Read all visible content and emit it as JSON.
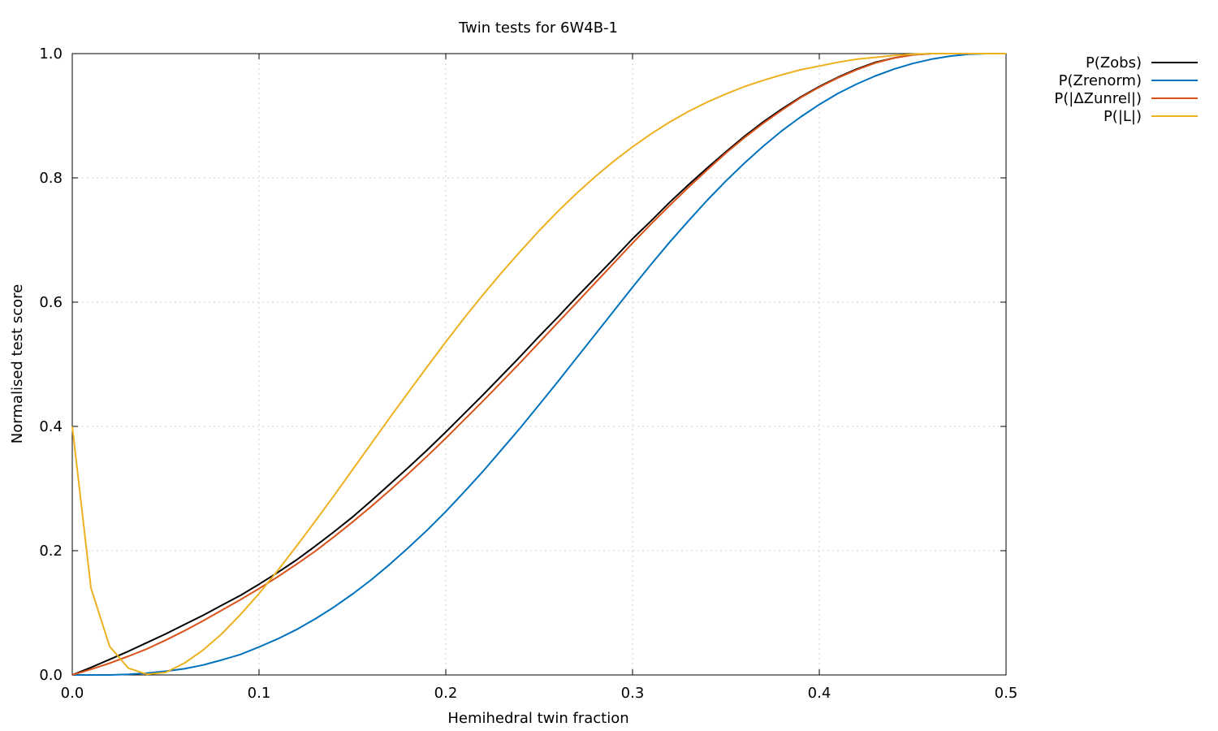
{
  "chart_data": {
    "type": "line",
    "title": "Twin tests for 6W4B-1",
    "xlabel": "Hemihedral twin fraction",
    "ylabel": "Normalised test score",
    "xlim": [
      0,
      0.5
    ],
    "ylim": [
      0,
      1.0
    ],
    "xticks": [
      "0.0",
      "0.1",
      "0.2",
      "0.3",
      "0.4",
      "0.5"
    ],
    "yticks": [
      "0.0",
      "0.2",
      "0.4",
      "0.6",
      "0.8",
      "1.0"
    ],
    "grid": true,
    "legend_position": "outside-top-right",
    "x": [
      0.0,
      0.01,
      0.02,
      0.03,
      0.04,
      0.05,
      0.06,
      0.07,
      0.08,
      0.09,
      0.1,
      0.11,
      0.12,
      0.13,
      0.14,
      0.15,
      0.16,
      0.17,
      0.18,
      0.19,
      0.2,
      0.21,
      0.22,
      0.23,
      0.24,
      0.25,
      0.26,
      0.27,
      0.28,
      0.29,
      0.3,
      0.31,
      0.32,
      0.33,
      0.34,
      0.35,
      0.36,
      0.37,
      0.38,
      0.39,
      0.4,
      0.41,
      0.42,
      0.43,
      0.44,
      0.45,
      0.46,
      0.47,
      0.48,
      0.49,
      0.5
    ],
    "series": [
      {
        "name": "P(Zobs)",
        "color": "#000000",
        "values": [
          0.0,
          0.012,
          0.025,
          0.038,
          0.052,
          0.066,
          0.081,
          0.096,
          0.112,
          0.128,
          0.146,
          0.165,
          0.185,
          0.207,
          0.23,
          0.254,
          0.28,
          0.307,
          0.334,
          0.362,
          0.391,
          0.421,
          0.451,
          0.482,
          0.513,
          0.545,
          0.576,
          0.608,
          0.639,
          0.67,
          0.702,
          0.731,
          0.761,
          0.789,
          0.816,
          0.842,
          0.867,
          0.89,
          0.911,
          0.93,
          0.947,
          0.962,
          0.975,
          0.986,
          0.993,
          0.998,
          1.0,
          1.0,
          1.0,
          1.0,
          1.0
        ]
      },
      {
        "name": "P(Zrenorm)",
        "color": "#0072bd",
        "values": [
          0.0,
          0.0,
          0.0,
          0.001,
          0.003,
          0.006,
          0.01,
          0.016,
          0.024,
          0.033,
          0.045,
          0.058,
          0.073,
          0.09,
          0.109,
          0.13,
          0.153,
          0.178,
          0.205,
          0.233,
          0.263,
          0.295,
          0.328,
          0.363,
          0.398,
          0.435,
          0.472,
          0.51,
          0.548,
          0.586,
          0.624,
          0.661,
          0.697,
          0.731,
          0.764,
          0.795,
          0.824,
          0.851,
          0.876,
          0.898,
          0.918,
          0.936,
          0.951,
          0.964,
          0.975,
          0.984,
          0.991,
          0.996,
          0.999,
          1.0,
          1.0
        ]
      },
      {
        "name": "P(|ΔZunrel|)",
        "color": "#d95319",
        "values": [
          0.0,
          0.009,
          0.019,
          0.03,
          0.042,
          0.056,
          0.071,
          0.087,
          0.104,
          0.121,
          0.139,
          0.158,
          0.178,
          0.199,
          0.222,
          0.246,
          0.271,
          0.297,
          0.324,
          0.352,
          0.381,
          0.411,
          0.441,
          0.472,
          0.503,
          0.535,
          0.567,
          0.599,
          0.631,
          0.663,
          0.695,
          0.726,
          0.756,
          0.785,
          0.813,
          0.84,
          0.865,
          0.888,
          0.909,
          0.929,
          0.946,
          0.961,
          0.974,
          0.985,
          0.993,
          0.998,
          1.0,
          1.0,
          1.0,
          1.0,
          1.0
        ]
      },
      {
        "name": "P(|L|)",
        "color": "#edb120",
        "values": [
          0.4,
          0.14,
          0.046,
          0.011,
          0.001,
          0.004,
          0.019,
          0.04,
          0.066,
          0.097,
          0.131,
          0.168,
          0.207,
          0.247,
          0.288,
          0.33,
          0.372,
          0.414,
          0.455,
          0.496,
          0.536,
          0.575,
          0.612,
          0.648,
          0.682,
          0.715,
          0.746,
          0.775,
          0.802,
          0.827,
          0.85,
          0.871,
          0.89,
          0.907,
          0.922,
          0.935,
          0.947,
          0.957,
          0.966,
          0.974,
          0.98,
          0.986,
          0.991,
          0.994,
          0.997,
          0.999,
          1.0,
          1.0,
          1.0,
          1.0,
          1.0
        ]
      }
    ]
  }
}
